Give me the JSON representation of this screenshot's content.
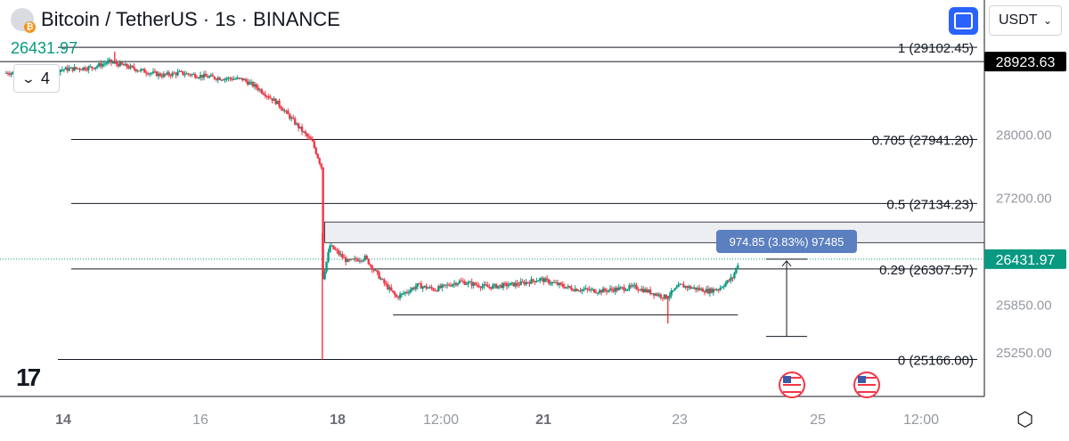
{
  "header": {
    "title": "Bitcoin / TetherUS · 1s · BINANCE",
    "last_price": "26431.97",
    "indicator_count": "4",
    "currency": "USDT"
  },
  "colors": {
    "up": "#089981",
    "down": "#f23645",
    "accent": "#2962ff",
    "measure": "#5b7fbf"
  },
  "icons": [
    "bitcoin-icon",
    "chevron-down-icon",
    "selection-icon",
    "tradingview-logo-icon",
    "us-flag-icon",
    "settings-icon"
  ],
  "chart_data": {
    "type": "candlestick",
    "ylim": [
      24700,
      29700
    ],
    "price_axis_ticks": [
      "28000.00",
      "27200.00",
      "25850.00",
      "25250.00"
    ],
    "price_labels": [
      {
        "label": "28923.63",
        "value": 28923.63,
        "style": "dark"
      },
      {
        "label": "26431.97",
        "value": 26431.97,
        "style": "current"
      }
    ],
    "time_axis_ticks": [
      "14",
      "16",
      "18",
      "12:00",
      "21",
      "23",
      "25",
      "12:00"
    ],
    "fib_levels": [
      {
        "label": "1 (29102.45)",
        "value": 29102.45
      },
      {
        "label": "0.705 (27941.20)",
        "value": 27941.2
      },
      {
        "label": "0.5 (27134.23)",
        "value": 27134.23
      },
      {
        "label": "0.29 (26307.57)",
        "value": 26307.57
      },
      {
        "label": "0 (25166.00)",
        "value": 25166.0
      }
    ],
    "measure_label": "974.85 (3.83%) 97485",
    "price_path": [
      [
        0,
        28780
      ],
      [
        1.5,
        28820
      ],
      [
        2.5,
        28850
      ],
      [
        3,
        28920
      ],
      [
        4,
        28800
      ],
      [
        4.5,
        28750
      ],
      [
        5,
        28780
      ],
      [
        6,
        28720
      ],
      [
        6.8,
        28700
      ],
      [
        7.2,
        28600
      ],
      [
        7.8,
        28400
      ],
      [
        8.3,
        28150
      ],
      [
        8.8,
        27900
      ],
      [
        9.05,
        27600
      ],
      [
        9.1,
        26200
      ],
      [
        9.3,
        26600
      ],
      [
        9.8,
        26400
      ],
      [
        10.3,
        26450
      ],
      [
        10.8,
        26150
      ],
      [
        11.2,
        25950
      ],
      [
        11.8,
        26100
      ],
      [
        12.3,
        26050
      ],
      [
        13,
        26150
      ],
      [
        13.8,
        26080
      ],
      [
        14.7,
        26120
      ],
      [
        15.3,
        26180
      ],
      [
        16.2,
        26060
      ],
      [
        17,
        26030
      ],
      [
        18,
        26080
      ],
      [
        18.9,
        25950
      ],
      [
        19.3,
        26100
      ],
      [
        20.1,
        26030
      ],
      [
        20.4,
        26060
      ],
      [
        20.8,
        26200
      ],
      [
        21,
        26431.97
      ]
    ],
    "wick_extremes": [
      [
        9.08,
        25166
      ],
      [
        18.95,
        25620
      ],
      [
        3.15,
        29050
      ]
    ]
  }
}
